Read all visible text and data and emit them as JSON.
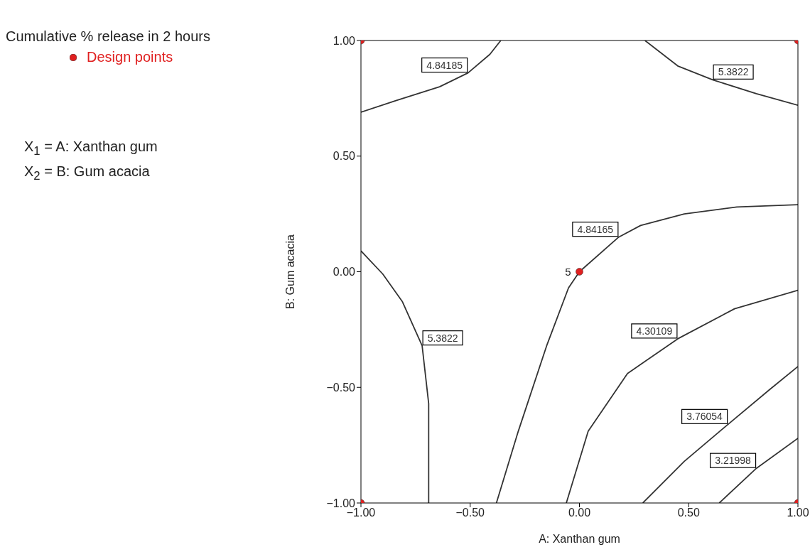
{
  "chart_data": {
    "type": "line",
    "title": "Cumulative % release in 2 hours",
    "xlabel": "A: Xanthan gum",
    "ylabel": "B: Gum acacia",
    "xlim": [
      -1,
      1
    ],
    "ylim": [
      -1,
      1
    ],
    "xticks": [
      {
        "value": -1,
        "label": "−1.00"
      },
      {
        "value": -0.5,
        "label": "−0.50"
      },
      {
        "value": 0,
        "label": "0.00"
      },
      {
        "value": 0.5,
        "label": "0.50"
      },
      {
        "value": 1,
        "label": "1.00"
      }
    ],
    "yticks": [
      {
        "value": -1,
        "label": "−1.00"
      },
      {
        "value": -0.5,
        "label": "−0.50"
      },
      {
        "value": 0,
        "label": "0.00"
      },
      {
        "value": 0.5,
        "label": "0.50"
      },
      {
        "value": 1,
        "label": "1.00"
      }
    ],
    "grid": false,
    "legend": "left",
    "marker": "none",
    "line_style": "solid",
    "series": [
      {
        "name": "4.84185",
        "color": "#333333",
        "x": [
          -1,
          -0.84,
          -0.64,
          -0.51,
          -0.41,
          -0.36
        ],
        "values": [
          0.69,
          0.74,
          0.8,
          0.86,
          0.94,
          1
        ]
      },
      {
        "name": "5.3822",
        "color": "#333333",
        "x": [
          0.3,
          0.45,
          0.61,
          0.81,
          1
        ],
        "values": [
          1,
          0.89,
          0.83,
          0.77,
          0.72
        ]
      },
      {
        "name": "4.84165",
        "color": "#333333",
        "x": [
          -0.38,
          -0.28,
          -0.15,
          -0.05,
          0,
          0.18,
          0.28,
          0.48,
          0.72,
          1
        ],
        "values": [
          -1,
          -0.69,
          -0.32,
          -0.07,
          0,
          0.15,
          0.2,
          0.25,
          0.28,
          0.29
        ]
      },
      {
        "name": "5.3822",
        "color": "#333333",
        "x": [
          -1,
          -0.9,
          -0.81,
          -0.72,
          -0.69,
          -0.69
        ],
        "values": [
          0.09,
          -0.01,
          -0.13,
          -0.32,
          -0.57,
          -1
        ]
      },
      {
        "name": "4.30109",
        "color": "#333333",
        "x": [
          -0.06,
          0.04,
          0.22,
          0.45,
          0.71,
          1
        ],
        "values": [
          -1,
          -0.69,
          -0.44,
          -0.29,
          -0.16,
          -0.08
        ]
      },
      {
        "name": "3.76054",
        "color": "#333333",
        "x": [
          0.29,
          0.48,
          0.68,
          0.87,
          1
        ],
        "values": [
          -1,
          -0.82,
          -0.66,
          -0.51,
          -0.41
        ]
      },
      {
        "name": "3.21998",
        "color": "#333333",
        "x": [
          0.64,
          0.81,
          1
        ],
        "values": [
          -1,
          -0.85,
          -0.72
        ]
      },
      {
        "name": "Design points",
        "type": "scatter",
        "marker": "circle",
        "color": "#e02020",
        "x": [
          -1,
          1,
          -1,
          1,
          0
        ],
        "values": [
          1,
          1,
          -1,
          -1,
          0
        ]
      }
    ],
    "annotations": [
      {
        "text": "5",
        "x": 0,
        "y": 0
      },
      "X$_{1}$ = A: Xanthan gum",
      "X$_{2}$ = B: Gum acacia"
    ]
  }
}
